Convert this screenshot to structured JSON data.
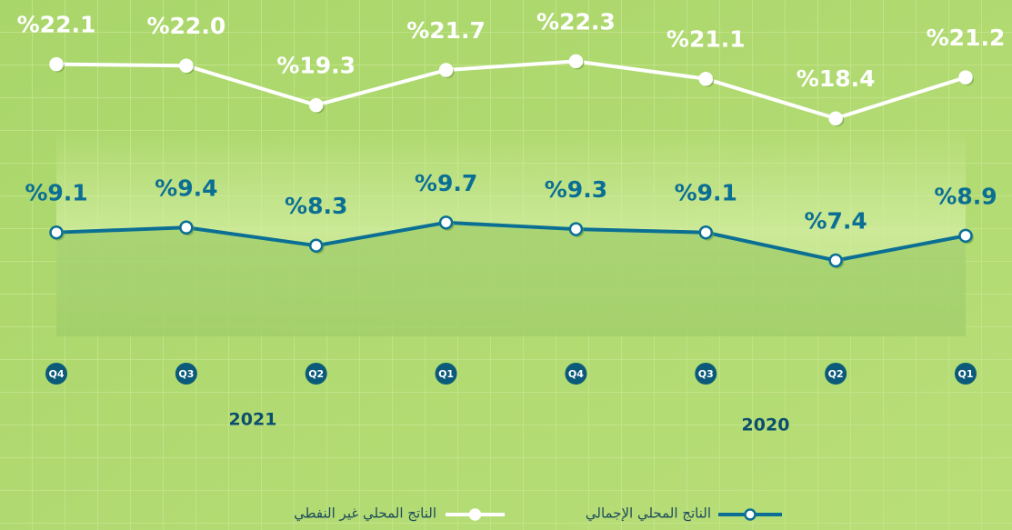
{
  "chart_data": {
    "type": "line",
    "categories": [
      "Q4",
      "Q3",
      "Q2",
      "Q1",
      "Q4",
      "Q3",
      "Q2",
      "Q1"
    ],
    "annotations": [
      "2021",
      "2020"
    ],
    "ylim": [
      6,
      24
    ],
    "y2lim": [
      5,
      21
    ],
    "series": [
      {
        "name": "الناتج المحلي غير النفطي",
        "color": "#ffffff",
        "values": [
          22.1,
          22.0,
          19.3,
          21.7,
          22.3,
          21.1,
          18.4,
          21.2
        ],
        "value_labels": [
          "%22.1",
          "%22.0",
          "%19.3",
          "%21.7",
          "%22.3",
          "%21.1",
          "%18.4",
          "%21.2"
        ]
      },
      {
        "name": "الناتج المحلي الإجمالي",
        "color": "#0b6f94",
        "axis": "y2",
        "values": [
          9.1,
          9.4,
          8.3,
          9.7,
          9.3,
          9.1,
          7.4,
          8.9
        ],
        "value_labels": [
          "%9.1",
          "%9.4",
          "%8.3",
          "%9.7",
          "%9.3",
          "%9.1",
          "%7.4",
          "%8.9"
        ]
      }
    ]
  }
}
